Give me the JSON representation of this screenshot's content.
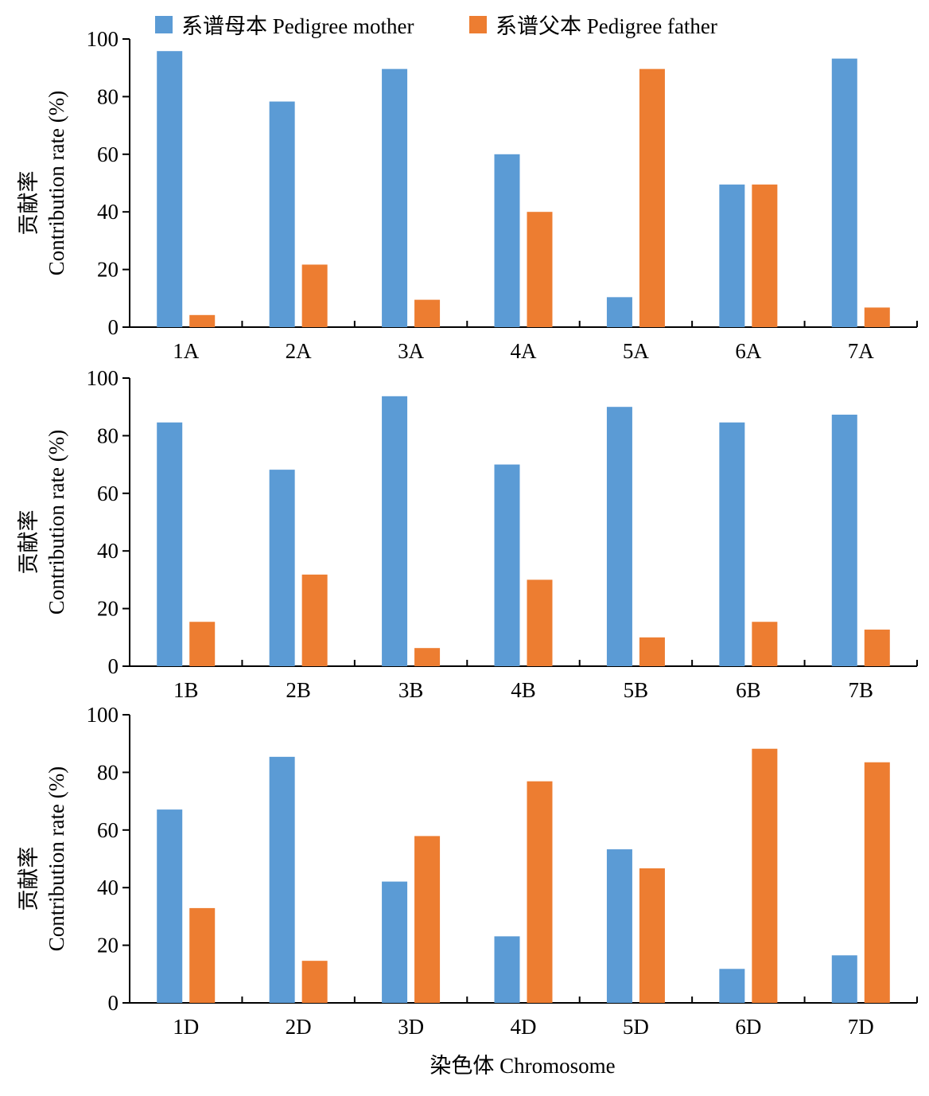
{
  "legend": {
    "items": [
      {
        "label": "系谱母本 Pedigree mother",
        "color": "#5b9bd5"
      },
      {
        "label": "系谱父本 Pedigree father",
        "color": "#ed7d31"
      }
    ]
  },
  "x_title": "染色体 Chromosome",
  "y_title_cn": "贡献率",
  "y_title_en": "Contribution rate (%)",
  "chart_data": [
    {
      "type": "bar",
      "categories": [
        "1A",
        "2A",
        "3A",
        "4A",
        "5A",
        "6A",
        "7A"
      ],
      "series": [
        {
          "name": "系谱母本 Pedigree mother",
          "values": [
            95.8,
            78.3,
            89.6,
            60.0,
            10.4,
            49.5,
            93.2
          ]
        },
        {
          "name": "系谱父本 Pedigree father",
          "values": [
            4.2,
            21.7,
            9.5,
            40.0,
            89.6,
            49.5,
            6.8
          ]
        }
      ],
      "ylabel": "贡献率 Contribution rate (%)",
      "ylim": [
        0,
        100
      ],
      "yticks": [
        "0",
        "20",
        "40",
        "60",
        "80",
        "100"
      ]
    },
    {
      "type": "bar",
      "categories": [
        "1B",
        "2B",
        "3B",
        "4B",
        "5B",
        "6B",
        "7B"
      ],
      "series": [
        {
          "name": "系谱母本 Pedigree mother",
          "values": [
            84.6,
            68.2,
            93.7,
            70.0,
            90.0,
            84.6,
            87.3
          ]
        },
        {
          "name": "系谱父本 Pedigree father",
          "values": [
            15.4,
            31.8,
            6.3,
            30.0,
            10.0,
            15.4,
            12.7
          ]
        }
      ],
      "ylabel": "贡献率 Contribution rate (%)",
      "ylim": [
        0,
        100
      ],
      "yticks": [
        "0",
        "20",
        "40",
        "60",
        "80",
        "100"
      ]
    },
    {
      "type": "bar",
      "categories": [
        "1D",
        "2D",
        "3D",
        "4D",
        "5D",
        "6D",
        "7D"
      ],
      "series": [
        {
          "name": "系谱母本 Pedigree mother",
          "values": [
            67.1,
            85.4,
            42.1,
            23.1,
            53.3,
            11.8,
            16.5
          ]
        },
        {
          "name": "系谱父本 Pedigree father",
          "values": [
            32.9,
            14.6,
            57.9,
            76.9,
            46.7,
            88.2,
            83.5
          ]
        }
      ],
      "ylabel": "贡献率 Contribution rate (%)",
      "xlabel": "染色体 Chromosome",
      "ylim": [
        0,
        100
      ],
      "yticks": [
        "0",
        "20",
        "40",
        "60",
        "80",
        "100"
      ]
    }
  ]
}
